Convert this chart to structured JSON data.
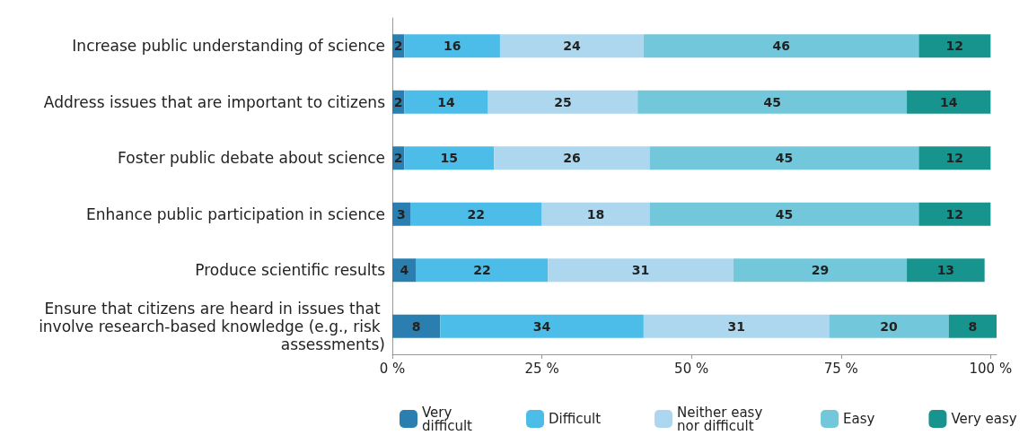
{
  "chart_data": {
    "type": "bar",
    "orientation": "horizontal",
    "stacked": true,
    "data_labels": true,
    "grid": false,
    "legend": "bottom",
    "categories": [
      "Increase public understanding of science",
      "Address issues that are important to citizens",
      "Foster public debate about science",
      "Enhance public participation in science",
      "Produce scientific results",
      "Ensure that citizens are heard in issues that involve research-based knowledge (e.g., risk assessments)"
    ],
    "xlim": [
      0,
      101
    ],
    "xticks": [
      {
        "value": 0,
        "label": "0 %"
      },
      {
        "value": 25,
        "label": "25 %"
      },
      {
        "value": 50,
        "label": "50 %"
      },
      {
        "value": 75,
        "label": "75 %"
      },
      {
        "value": 100,
        "label": "100 %"
      }
    ],
    "series": [
      {
        "name": "Very difficult",
        "color": "#2a7eb0",
        "values": [
          2,
          2,
          2,
          3,
          4,
          8
        ]
      },
      {
        "name": "Difficult",
        "color": "#4cbde8",
        "values": [
          16,
          14,
          15,
          22,
          22,
          34
        ]
      },
      {
        "name": "Neither easy nor difficult",
        "color": "#acd7ee",
        "values": [
          24,
          25,
          26,
          18,
          31,
          31
        ]
      },
      {
        "name": "Easy",
        "color": "#72c8da",
        "values": [
          46,
          45,
          45,
          45,
          29,
          20
        ]
      },
      {
        "name": "Very easy",
        "color": "#18948e",
        "values": [
          12,
          14,
          12,
          12,
          13,
          8
        ]
      }
    ]
  }
}
